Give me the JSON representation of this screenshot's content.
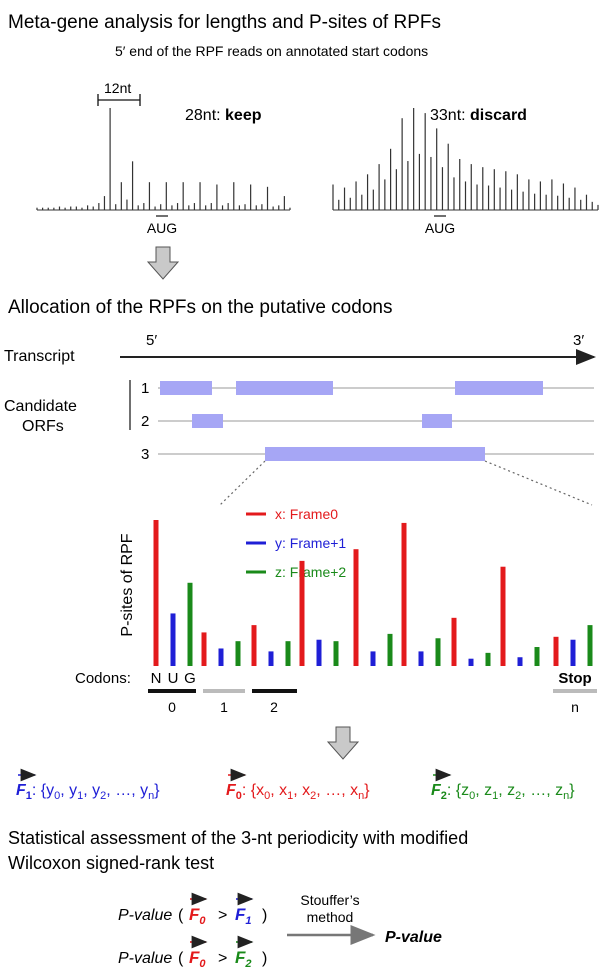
{
  "section1": {
    "title": "Meta-gene analysis for lengths and P-sites of RPFs",
    "subtitle": "5′ end of the RPF reads on annotated start codons",
    "scale_label": "12nt",
    "left_plot": {
      "length": "28nt: ",
      "verdict": "keep",
      "codon": "AUG",
      "values": [
        2,
        2,
        2,
        2,
        3,
        2,
        3,
        3,
        2,
        4,
        3,
        6,
        12,
        88,
        5,
        24,
        9,
        42,
        4,
        6,
        24,
        3,
        5,
        24,
        4,
        6,
        24,
        4,
        6,
        24,
        4,
        6,
        22,
        4,
        6,
        24,
        4,
        5,
        22,
        4,
        5,
        20,
        3,
        4,
        12,
        2
      ]
    },
    "right_plot": {
      "length": "33nt: ",
      "verdict": "discard",
      "codon": "AUG",
      "values": [
        25,
        10,
        22,
        12,
        28,
        15,
        35,
        20,
        45,
        30,
        60,
        40,
        90,
        48,
        100,
        55,
        95,
        52,
        80,
        42,
        65,
        32,
        50,
        28,
        45,
        25,
        42,
        24,
        40,
        22,
        38,
        20,
        35,
        18,
        30,
        16,
        28,
        15,
        30,
        14,
        26,
        12,
        22,
        10,
        15,
        8,
        5
      ]
    }
  },
  "section2": {
    "title": "Allocation of the RPFs on the putative codons",
    "transcript_label": "Transcript",
    "five_prime": "5′",
    "three_prime": "3′",
    "candidate_label_1": "Candidate",
    "candidate_label_2": "ORFs",
    "orf_numbers": [
      "1",
      "2",
      "3"
    ],
    "bar_color": "#a6a6f5"
  },
  "psite_chart": {
    "ylabel": "P-sites of RPF",
    "legend": [
      {
        "label": "x: Frame0",
        "color": "#e31a1c"
      },
      {
        "label": "y: Frame+1",
        "color": "#1f1fd6"
      },
      {
        "label": "z: Frame+2",
        "color": "#1a8a1a"
      }
    ],
    "codons_label": "Codons:",
    "start_letters": [
      "N",
      "U",
      "G"
    ],
    "stop_label": "Stop",
    "codon_index_labels": [
      "0",
      "1",
      "2",
      "n"
    ]
  },
  "chart_data": {
    "type": "bar",
    "ylabel": "P-sites of RPF",
    "series": [
      {
        "name": "x: Frame0",
        "values": [
          100,
          23,
          28,
          72,
          80,
          98,
          33,
          68,
          20
        ]
      },
      {
        "name": "y: Frame+1",
        "values": [
          36,
          12,
          10,
          18,
          10,
          10,
          5,
          6,
          18
        ]
      },
      {
        "name": "z: Frame+2",
        "values": [
          57,
          17,
          17,
          17,
          22,
          19,
          9,
          13,
          28
        ]
      }
    ]
  },
  "vectors": {
    "f1": {
      "name": "F",
      "sub": "1",
      "set": ": {y",
      "items": [
        "0",
        "1",
        "2"
      ],
      "last": "n",
      "color": "#1f1fd6"
    },
    "f0": {
      "name": "F",
      "sub": "0",
      "set": ": {x",
      "items": [
        "0",
        "1",
        "2"
      ],
      "last": "n",
      "color": "#e31a1c"
    },
    "f2": {
      "name": "F",
      "sub": "2",
      "set": ": {z",
      "items": [
        "0",
        "1",
        "2"
      ],
      "last": "n",
      "color": "#1a8a1a"
    }
  },
  "section3": {
    "title_line1": "Statistical assessment of the 3-nt periodicity with modified",
    "title_line2": "Wilcoxon signed-rank test",
    "pvalue_label": "P-value",
    "method_line1": "Stouffer’s",
    "method_line2": "method",
    "result": "P-value"
  }
}
